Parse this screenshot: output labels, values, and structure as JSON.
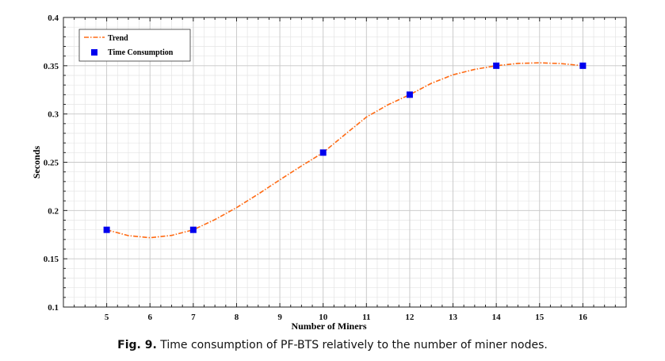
{
  "chart_data": {
    "type": "scatter",
    "xlabel": "Number of Miners",
    "ylabel": "Seconds",
    "xlim": [
      4,
      17
    ],
    "ylim": [
      0.1,
      0.4
    ],
    "x_ticks": [
      5,
      6,
      7,
      8,
      9,
      10,
      11,
      12,
      13,
      14,
      15,
      16
    ],
    "y_ticks": [
      0.1,
      0.15,
      0.2,
      0.25,
      0.3,
      0.35,
      0.4
    ],
    "grid": true,
    "minor_grid": true,
    "legend_position": "top-left",
    "series": [
      {
        "name": "Trend",
        "kind": "line",
        "style": "dash-dot",
        "color": "#ff6a13",
        "points": [
          [
            5,
            0.18
          ],
          [
            5.5,
            0.174
          ],
          [
            6,
            0.1718
          ],
          [
            6.5,
            0.1742
          ],
          [
            7,
            0.18
          ],
          [
            7.5,
            0.1906
          ],
          [
            8,
            0.203
          ],
          [
            8.5,
            0.217
          ],
          [
            9,
            0.2318
          ],
          [
            9.5,
            0.2462
          ],
          [
            10,
            0.26
          ],
          [
            10.5,
            0.2786
          ],
          [
            11,
            0.2968
          ],
          [
            11.5,
            0.3096
          ],
          [
            12,
            0.32
          ],
          [
            12.5,
            0.3318
          ],
          [
            13,
            0.3406
          ],
          [
            13.5,
            0.3462
          ],
          [
            14,
            0.35
          ],
          [
            14.5,
            0.3524
          ],
          [
            15,
            0.353
          ],
          [
            15.5,
            0.3522
          ],
          [
            16,
            0.35
          ]
        ]
      },
      {
        "name": "Time Consumption",
        "kind": "marker",
        "marker": "square",
        "color": "#0000ee",
        "x": [
          5,
          7,
          10,
          12,
          14,
          16
        ],
        "y": [
          0.18,
          0.18,
          0.26,
          0.32,
          0.35,
          0.35
        ]
      }
    ]
  },
  "caption": {
    "label": "Fig. 9.",
    "text": " Time consumption of PF-BTS relatively to the number of miner nodes."
  }
}
